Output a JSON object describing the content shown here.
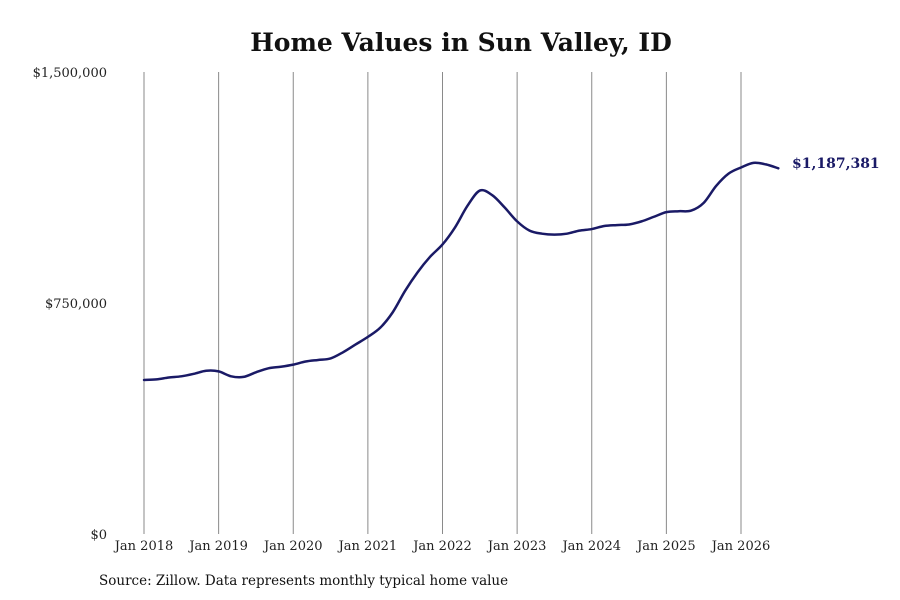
{
  "chart_data": {
    "type": "line",
    "title": "Home Values in Sun Valley, ID",
    "xlabel": "",
    "ylabel": "",
    "ylim": [
      0,
      1500000
    ],
    "yticks": [
      {
        "value": 0,
        "label": "$0"
      },
      {
        "value": 750000,
        "label": "$750,000"
      },
      {
        "value": 1500000,
        "label": "$1,500,000"
      }
    ],
    "xticks": [
      "Jan 2018",
      "Jan 2019",
      "Jan 2020",
      "Jan 2021",
      "Jan 2022",
      "Jan 2023",
      "Jan 2024",
      "Jan 2025",
      "Jan 2026"
    ],
    "xgrid": true,
    "ygrid": false,
    "line_color": "#1a1a66",
    "series": [
      {
        "points": [
          [
            "2018-01",
            500000
          ],
          [
            "2018-03",
            502000
          ],
          [
            "2018-05",
            508000
          ],
          [
            "2018-07",
            512000
          ],
          [
            "2018-09",
            520000
          ],
          [
            "2018-11",
            530000
          ],
          [
            "2019-01",
            528000
          ],
          [
            "2019-03",
            512000
          ],
          [
            "2019-05",
            510000
          ],
          [
            "2019-07",
            525000
          ],
          [
            "2019-09",
            538000
          ],
          [
            "2019-11",
            543000
          ],
          [
            "2020-01",
            550000
          ],
          [
            "2020-03",
            560000
          ],
          [
            "2020-05",
            565000
          ],
          [
            "2020-07",
            570000
          ],
          [
            "2020-09",
            590000
          ],
          [
            "2020-11",
            615000
          ],
          [
            "2021-01",
            640000
          ],
          [
            "2021-03",
            670000
          ],
          [
            "2021-05",
            720000
          ],
          [
            "2021-07",
            790000
          ],
          [
            "2021-09",
            850000
          ],
          [
            "2021-11",
            900000
          ],
          [
            "2022-01",
            940000
          ],
          [
            "2022-03",
            995000
          ],
          [
            "2022-05",
            1065000
          ],
          [
            "2022-07",
            1115000
          ],
          [
            "2022-09",
            1100000
          ],
          [
            "2022-11",
            1060000
          ],
          [
            "2023-01",
            1015000
          ],
          [
            "2023-03",
            985000
          ],
          [
            "2023-05",
            975000
          ],
          [
            "2023-07",
            972000
          ],
          [
            "2023-09",
            975000
          ],
          [
            "2023-11",
            985000
          ],
          [
            "2024-01",
            990000
          ],
          [
            "2024-03",
            1000000
          ],
          [
            "2024-05",
            1003000
          ],
          [
            "2024-07",
            1005000
          ],
          [
            "2024-09",
            1015000
          ],
          [
            "2024-11",
            1030000
          ],
          [
            "2025-01",
            1045000
          ],
          [
            "2025-03",
            1048000
          ],
          [
            "2025-05",
            1050000
          ],
          [
            "2025-07",
            1075000
          ],
          [
            "2025-09",
            1130000
          ],
          [
            "2025-11",
            1170000
          ],
          [
            "2026-01",
            1190000
          ],
          [
            "2026-03",
            1205000
          ],
          [
            "2026-05",
            1200000
          ],
          [
            "2026-07",
            1187381
          ]
        ]
      }
    ],
    "end_label": "$1,187,381",
    "end_label_color": "#1a1a66"
  },
  "footer": {
    "source": "Source: Zillow. Data represents monthly typical home value"
  }
}
